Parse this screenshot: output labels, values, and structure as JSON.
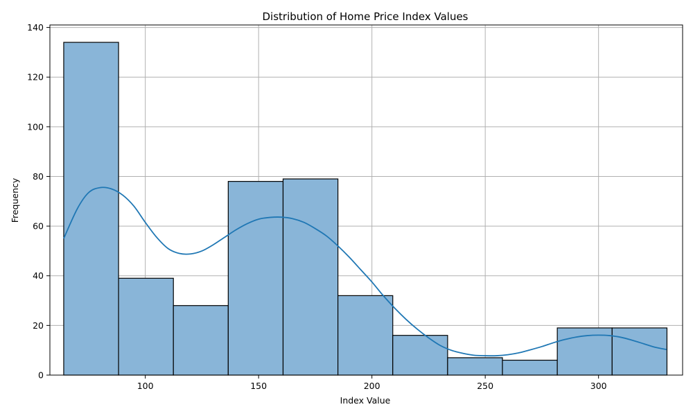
{
  "chart_data": {
    "type": "bar",
    "title": "Distribution of Home Price Index Values",
    "xlabel": "Index Value",
    "ylabel": "Frequency",
    "xlim": [
      57.9,
      337.1
    ],
    "ylim": [
      0,
      141
    ],
    "xticks": [
      100,
      150,
      200,
      250,
      300
    ],
    "yticks": [
      0,
      20,
      40,
      60,
      80,
      100,
      120,
      140
    ],
    "grid": true,
    "bin_edges": [
      64,
      88.2,
      112.4,
      136.6,
      160.8,
      185.0,
      209.2,
      233.4,
      257.6,
      281.8,
      306.0,
      330.2
    ],
    "values": [
      134,
      39,
      28,
      78,
      79,
      32,
      16,
      7,
      6,
      19,
      19
    ],
    "kde": {
      "x": [
        64,
        70,
        75,
        80,
        85,
        90,
        95,
        100,
        105,
        110,
        115,
        120,
        125,
        130,
        135,
        140,
        145,
        150,
        155,
        160,
        165,
        170,
        175,
        180,
        185,
        190,
        195,
        200,
        205,
        210,
        215,
        220,
        225,
        230,
        235,
        240,
        245,
        250,
        255,
        260,
        265,
        270,
        275,
        280,
        285,
        290,
        295,
        300,
        305,
        310,
        315,
        320,
        325,
        330
      ],
      "y": [
        55,
        67,
        73.5,
        75.5,
        75,
        72.5,
        68,
        61.5,
        55.5,
        51,
        49,
        48.8,
        50,
        52.5,
        55.5,
        58.5,
        61,
        62.8,
        63.5,
        63.6,
        63,
        61.5,
        59,
        56,
        52,
        47.5,
        42.5,
        37.5,
        32,
        27,
        22.5,
        18.5,
        15,
        12,
        10,
        8.8,
        8,
        7.8,
        7.8,
        8.2,
        9,
        10.2,
        11.5,
        13,
        14.3,
        15.3,
        15.9,
        16.1,
        15.9,
        15.2,
        14,
        12.6,
        11.2,
        10.3
      ],
      "color": "#1f77b4"
    },
    "bar_color": "#89b5d8"
  }
}
